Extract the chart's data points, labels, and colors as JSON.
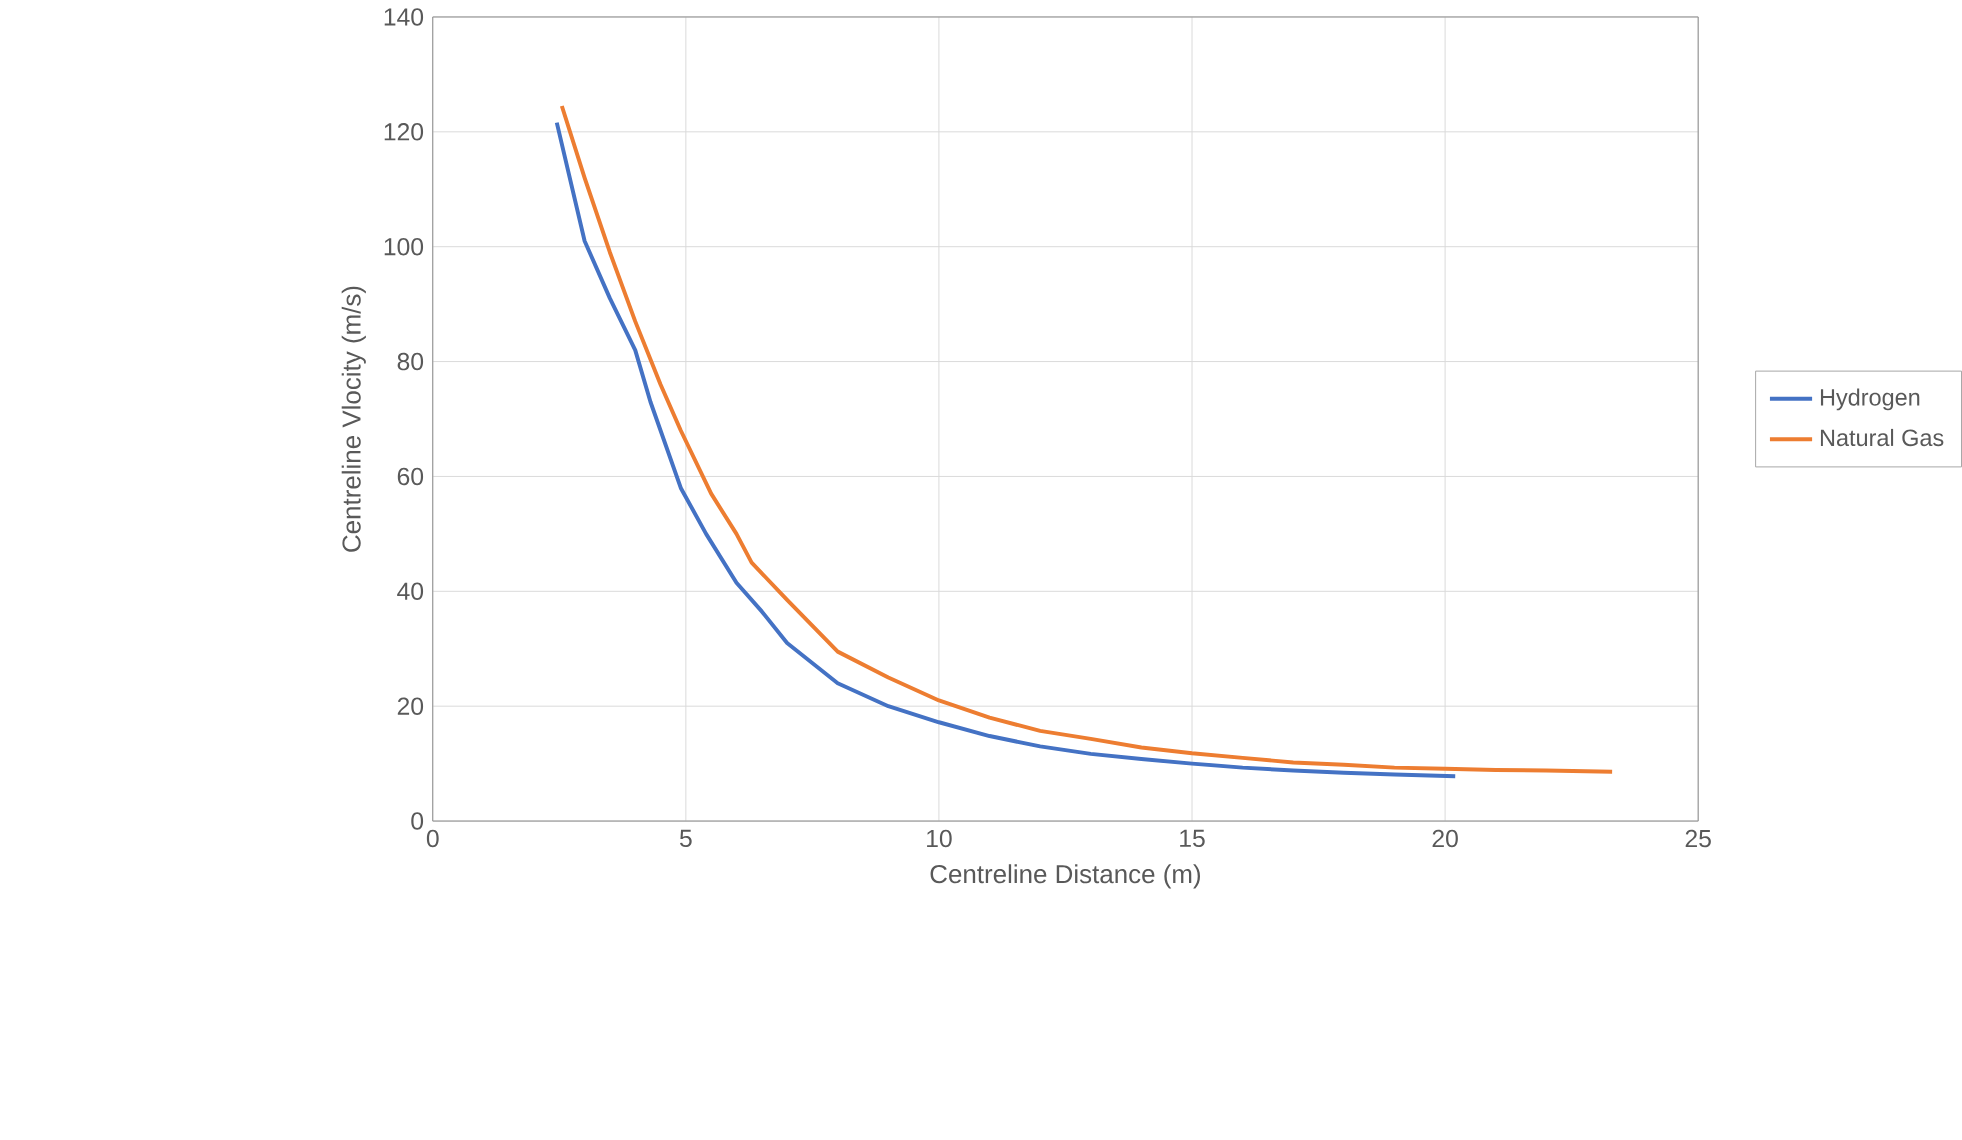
{
  "chart_data": {
    "type": "line",
    "xlabel": "Centreline Distance (m)",
    "ylabel": "Centreline Vlocity (m/s)",
    "xlim": [
      0,
      25
    ],
    "xticks": [
      0,
      5,
      10,
      15,
      20,
      25
    ],
    "ylim": [
      0,
      140
    ],
    "yticks": [
      0,
      20,
      40,
      60,
      80,
      100,
      120,
      140
    ],
    "grid": true,
    "legend": "right",
    "marker": "none",
    "line_style": "solid",
    "series": [
      {
        "name": "Hydrogen",
        "color": "#4472c4",
        "x": [
          2.45,
          3,
          3.5,
          4,
          4.3,
          4.9,
          5.4,
          6,
          6.5,
          7,
          8,
          9,
          10,
          11,
          12,
          13,
          14,
          15,
          16,
          17,
          18,
          19,
          20.2
        ],
        "values": [
          121.6,
          101,
          91,
          82,
          73,
          58,
          50,
          41.5,
          36.5,
          31,
          24,
          20,
          17.2,
          14.8,
          13,
          11.7,
          10.8,
          10,
          9.3,
          8.8,
          8.4,
          8.1,
          7.8
        ]
      },
      {
        "name": "Natural Gas",
        "color": "#ed7d31",
        "x": [
          2.55,
          3,
          3.5,
          4,
          4.5,
          4.9,
          5.5,
          6,
          6.3,
          7,
          8,
          9,
          10,
          11,
          12,
          13,
          14,
          15,
          16,
          17,
          18,
          19,
          20,
          21,
          22,
          23.3
        ],
        "values": [
          124.5,
          112,
          99,
          87,
          76,
          68,
          57,
          50,
          45,
          38.5,
          29.5,
          25,
          21,
          18,
          15.7,
          14.3,
          12.8,
          11.8,
          11,
          10.2,
          9.8,
          9.3,
          9.1,
          8.9,
          8.8,
          8.6
        ]
      }
    ]
  }
}
